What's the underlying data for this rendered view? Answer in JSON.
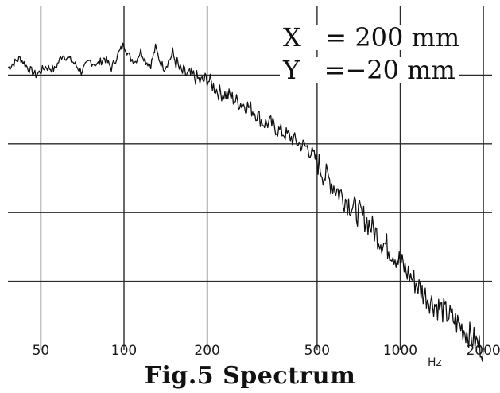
{
  "chart_data": {
    "type": "line",
    "title": "",
    "xlabel": "",
    "ylabel": "",
    "x_scale": "log",
    "xlim": [
      38,
      2150
    ],
    "ylim": [
      0,
      5
    ],
    "grid": true,
    "x_ticks": [
      50,
      100,
      200,
      500,
      1000,
      2000
    ],
    "x_tick_labels": [
      "50",
      "100",
      "200",
      "500",
      "1000",
      "2000"
    ],
    "x_unit_label": "Hz",
    "annotations": [
      "X   = 200 mm",
      "Y   =−20 mm"
    ],
    "caption": "Fig.5 Spectrum",
    "series": [
      {
        "points": [
          [
            38,
            4.1
          ],
          [
            42,
            4.25
          ],
          [
            45,
            4.1
          ],
          [
            48,
            4.0
          ],
          [
            52,
            4.12
          ],
          [
            56,
            4.08
          ],
          [
            60,
            4.3
          ],
          [
            65,
            4.2
          ],
          [
            70,
            4.05
          ],
          [
            75,
            4.2
          ],
          [
            80,
            4.15
          ],
          [
            85,
            4.25
          ],
          [
            90,
            4.1
          ],
          [
            95,
            4.3
          ],
          [
            100,
            4.45
          ],
          [
            105,
            4.25
          ],
          [
            110,
            4.2
          ],
          [
            115,
            4.35
          ],
          [
            120,
            4.2
          ],
          [
            125,
            4.15
          ],
          [
            130,
            4.4
          ],
          [
            135,
            4.2
          ],
          [
            140,
            4.1
          ],
          [
            150,
            4.3
          ],
          [
            160,
            4.05
          ],
          [
            170,
            4.0
          ],
          [
            180,
            3.98
          ],
          [
            190,
            3.9
          ],
          [
            200,
            3.95
          ],
          [
            220,
            3.75
          ],
          [
            240,
            3.7
          ],
          [
            260,
            3.6
          ],
          [
            280,
            3.55
          ],
          [
            300,
            3.45
          ],
          [
            320,
            3.3
          ],
          [
            340,
            3.3
          ],
          [
            360,
            3.2
          ],
          [
            380,
            3.15
          ],
          [
            400,
            3.1
          ],
          [
            430,
            3.0
          ],
          [
            460,
            2.95
          ],
          [
            500,
            2.75
          ],
          [
            530,
            2.55
          ],
          [
            560,
            2.45
          ],
          [
            600,
            2.3
          ],
          [
            650,
            2.15
          ],
          [
            700,
            2.0
          ],
          [
            750,
            1.9
          ],
          [
            800,
            1.75
          ],
          [
            850,
            1.6
          ],
          [
            900,
            1.5
          ],
          [
            950,
            1.4
          ],
          [
            1000,
            1.28
          ],
          [
            1050,
            1.15
          ],
          [
            1100,
            1.05
          ],
          [
            1150,
            0.95
          ],
          [
            1200,
            0.85
          ],
          [
            1300,
            0.7
          ],
          [
            1400,
            0.6
          ],
          [
            1500,
            0.5
          ],
          [
            1600,
            0.4
          ],
          [
            1700,
            0.3
          ],
          [
            1800,
            0.2
          ],
          [
            1900,
            0.1
          ],
          [
            2000,
            0.02
          ]
        ]
      }
    ]
  }
}
